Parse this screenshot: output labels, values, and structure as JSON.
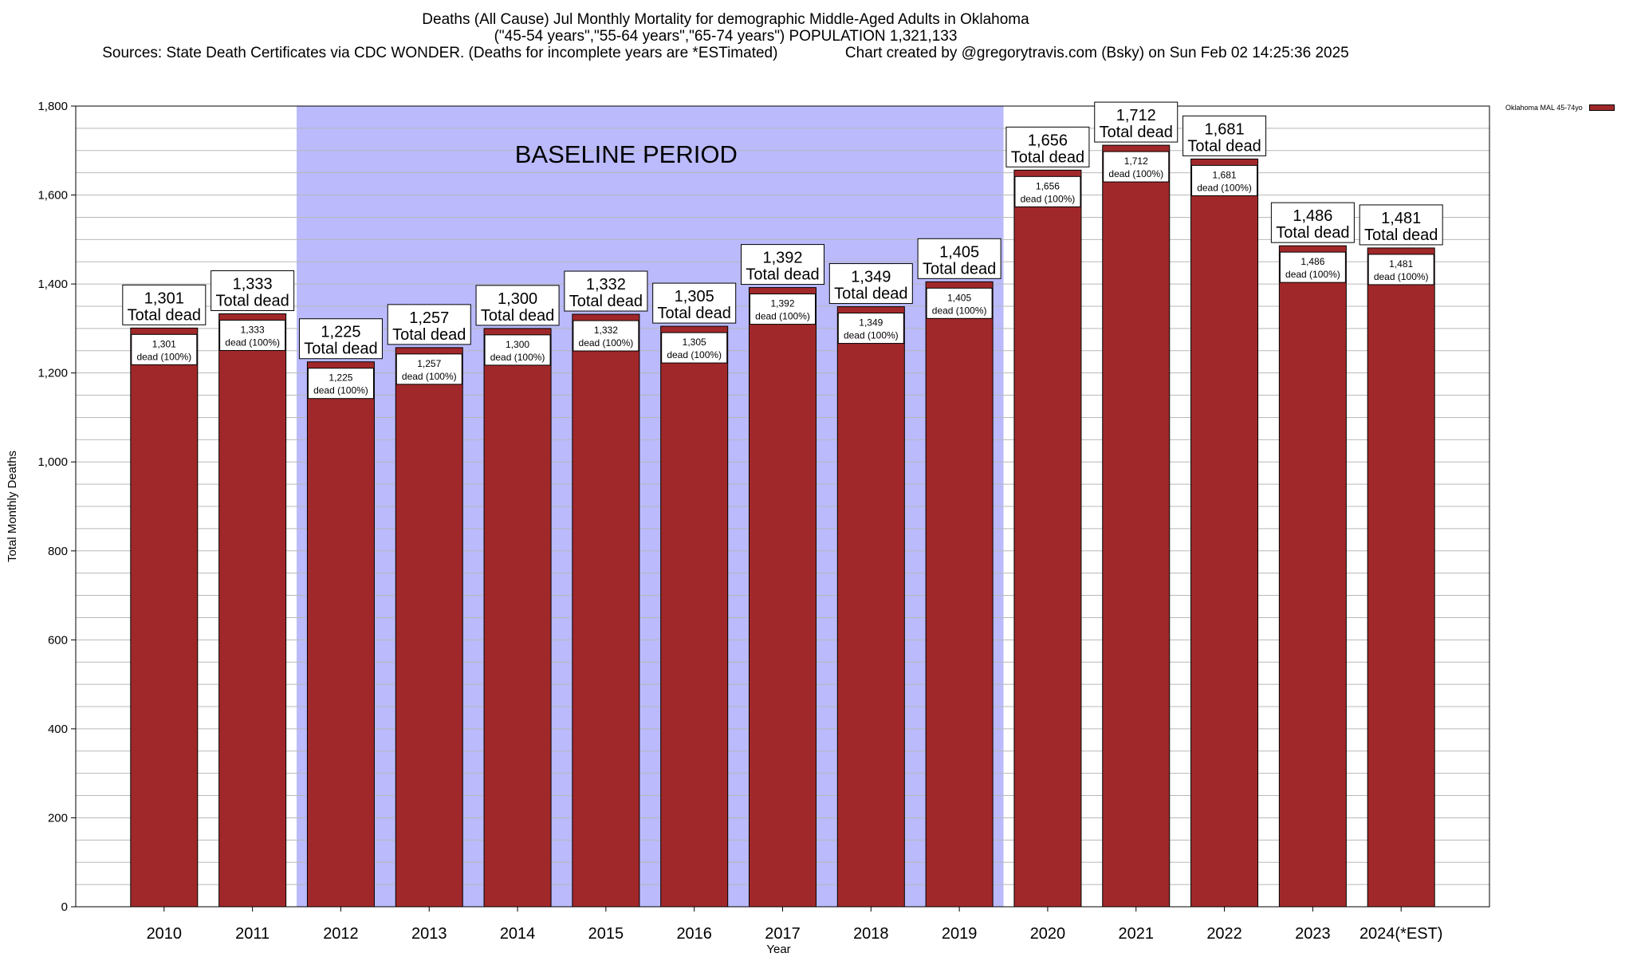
{
  "chart_data": {
    "type": "bar",
    "title": "Deaths (All Cause) Jul Monthly Mortality for demographic Middle-Aged Adults in Oklahoma",
    "subtitle": "(\"45-54 years\",\"55-64 years\",\"65-74 years\") POPULATION 1,321,133",
    "sources": "Sources: State Death Certificates via CDC WONDER. (Deaths for incomplete years are *ESTimated)",
    "credit": "Chart created by @gregorytravis.com (Bsky) on Sun Feb 02 14:25:36 2025",
    "xlabel": "Year",
    "ylabel": "Total Monthly Deaths",
    "ylim": [
      0,
      1800
    ],
    "yticks": [
      0,
      200,
      400,
      600,
      800,
      1000,
      1200,
      1400,
      1600,
      1800
    ],
    "ytick_labels": [
      "0",
      "200",
      "400",
      "600",
      "800",
      "1,000",
      "1,200",
      "1,400",
      "1,600",
      "1,800"
    ],
    "grid": true,
    "categories": [
      "2010",
      "2011",
      "2012",
      "2013",
      "2014",
      "2015",
      "2016",
      "2017",
      "2018",
      "2019",
      "2020",
      "2021",
      "2022",
      "2023",
      "2024(*EST)"
    ],
    "series": [
      {
        "name": "Oklahoma MAL 45-74yo",
        "color": "#a1282a",
        "values": [
          1301,
          1333,
          1225,
          1257,
          1300,
          1332,
          1305,
          1392,
          1349,
          1405,
          1656,
          1712,
          1681,
          1486,
          1481
        ]
      }
    ],
    "top_labels": [
      "1,301",
      "1,333",
      "1,225",
      "1,257",
      "1,300",
      "1,332",
      "1,305",
      "1,392",
      "1,349",
      "1,405",
      "1,656",
      "1,712",
      "1,681",
      "1,486",
      "1,481"
    ],
    "total_label": "Total dead",
    "inner_label_suffix": "dead (100%)",
    "baseline": {
      "label": "BASELINE PERIOD",
      "start": "2012",
      "end": "2019",
      "color": "#babafc"
    },
    "legend": {
      "label": "Oklahoma MAL 45-74yo",
      "placement": "top-right"
    }
  }
}
